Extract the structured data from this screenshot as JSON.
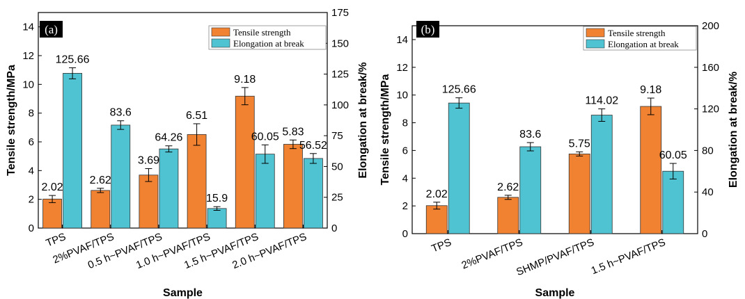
{
  "colors": {
    "tensile": "#F08232",
    "elongation": "#4FC3D1",
    "panel_tag_bg": "#000000"
  },
  "chart_data": [
    {
      "type": "bar",
      "panel_tag": "(a)",
      "xlabel": "Sample",
      "ylabel_left": "Tensile strength/MPa",
      "ylabel_right": "Elongation at break/%",
      "ylim_left": [
        0,
        15
      ],
      "ylim_right": [
        0,
        175
      ],
      "yticks_left": [
        0,
        2,
        4,
        6,
        8,
        10,
        12,
        14
      ],
      "yticks_right": [
        0,
        25,
        50,
        75,
        100,
        125,
        150,
        175
      ],
      "categories": [
        "TPS",
        "2%PVAF/TPS",
        "0.5 h~PVAF/TPS",
        "1.0 h~PVAF/TPS",
        "1.5 h~PVAF/TPS",
        "2.0 h~PVAF/TPS"
      ],
      "legend": [
        "Tensile strength",
        "Elongation at break"
      ],
      "legend_position": "top-right",
      "series": [
        {
          "name": "Tensile strength",
          "axis": "left",
          "values": [
            2.02,
            2.62,
            3.69,
            6.51,
            9.18,
            5.83
          ],
          "errors": [
            0.25,
            0.15,
            0.45,
            0.75,
            0.6,
            0.3
          ],
          "labels": [
            "2.02",
            "2.62",
            "3.69",
            "6.51",
            "9.18",
            "5.83"
          ]
        },
        {
          "name": "Elongation at break",
          "axis": "right",
          "values": [
            125.66,
            83.6,
            64.26,
            15.9,
            60.05,
            56.52
          ],
          "errors": [
            4.5,
            3.5,
            2.5,
            1.5,
            7.5,
            4.0
          ],
          "labels": [
            "125.66",
            "83.6",
            "64.26",
            "15.9",
            "60.05",
            "56.52"
          ]
        }
      ]
    },
    {
      "type": "bar",
      "panel_tag": "(b)",
      "xlabel": "Sample",
      "ylabel_left": "Tensile strength/MPa",
      "ylabel_right": "Elongation at break/%",
      "ylim_left": [
        0,
        15
      ],
      "ylim_right": [
        0,
        200
      ],
      "yticks_left": [
        0,
        2,
        4,
        6,
        8,
        10,
        12,
        14
      ],
      "yticks_right": [
        0,
        40,
        80,
        120,
        160,
        200
      ],
      "categories": [
        "TPS",
        "2%PVAF/TPS",
        "SHMP/PVAF/TPS",
        "1.5 h~PVAF/TPS"
      ],
      "legend": [
        "Tensile strength",
        "Elongation at break"
      ],
      "legend_position": "top-right",
      "series": [
        {
          "name": "Tensile strength",
          "axis": "left",
          "values": [
            2.02,
            2.62,
            5.75,
            9.18
          ],
          "errors": [
            0.25,
            0.15,
            0.15,
            0.6
          ],
          "labels": [
            "2.02",
            "2.62",
            "5.75",
            "9.18"
          ]
        },
        {
          "name": "Elongation at break",
          "axis": "right",
          "values": [
            125.66,
            83.6,
            114.02,
            60.05
          ],
          "errors": [
            5.0,
            4.0,
            6.0,
            7.5
          ],
          "labels": [
            "125.66",
            "83.6",
            "114.02",
            "60.05"
          ]
        }
      ]
    }
  ]
}
